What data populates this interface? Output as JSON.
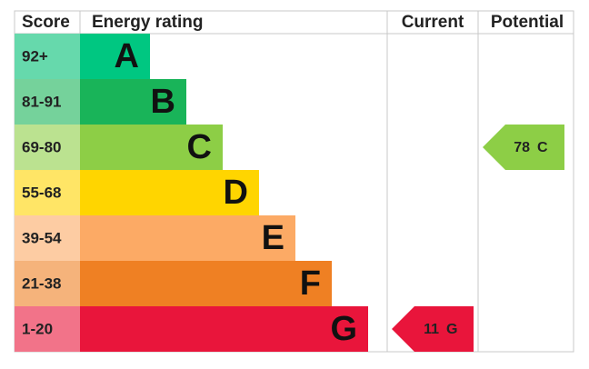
{
  "header": {
    "score": "Score",
    "rating": "Energy rating",
    "current": "Current",
    "potential": "Potential"
  },
  "bands": [
    {
      "score": "92+",
      "rating": "A",
      "color": "#00c781",
      "score_color": "#66d9ac"
    },
    {
      "score": "81-91",
      "rating": "B",
      "color": "#19b459",
      "score_color": "#75d29b"
    },
    {
      "score": "69-80",
      "rating": "C",
      "color": "#8dce46",
      "score_color": "#bbe290"
    },
    {
      "score": "55-68",
      "rating": "D",
      "color": "#ffd500",
      "score_color": "#ffe566"
    },
    {
      "score": "39-54",
      "rating": "E",
      "color": "#fcaa65",
      "score_color": "#fdcca3"
    },
    {
      "score": "21-38",
      "rating": "F",
      "color": "#ef8023",
      "score_color": "#f5b37b"
    },
    {
      "score": "1-20",
      "rating": "G",
      "color": "#e9153b",
      "score_color": "#f27389"
    }
  ],
  "current": {
    "score": 11,
    "rating": "G"
  },
  "potential": {
    "score": 78,
    "rating": "C"
  }
}
